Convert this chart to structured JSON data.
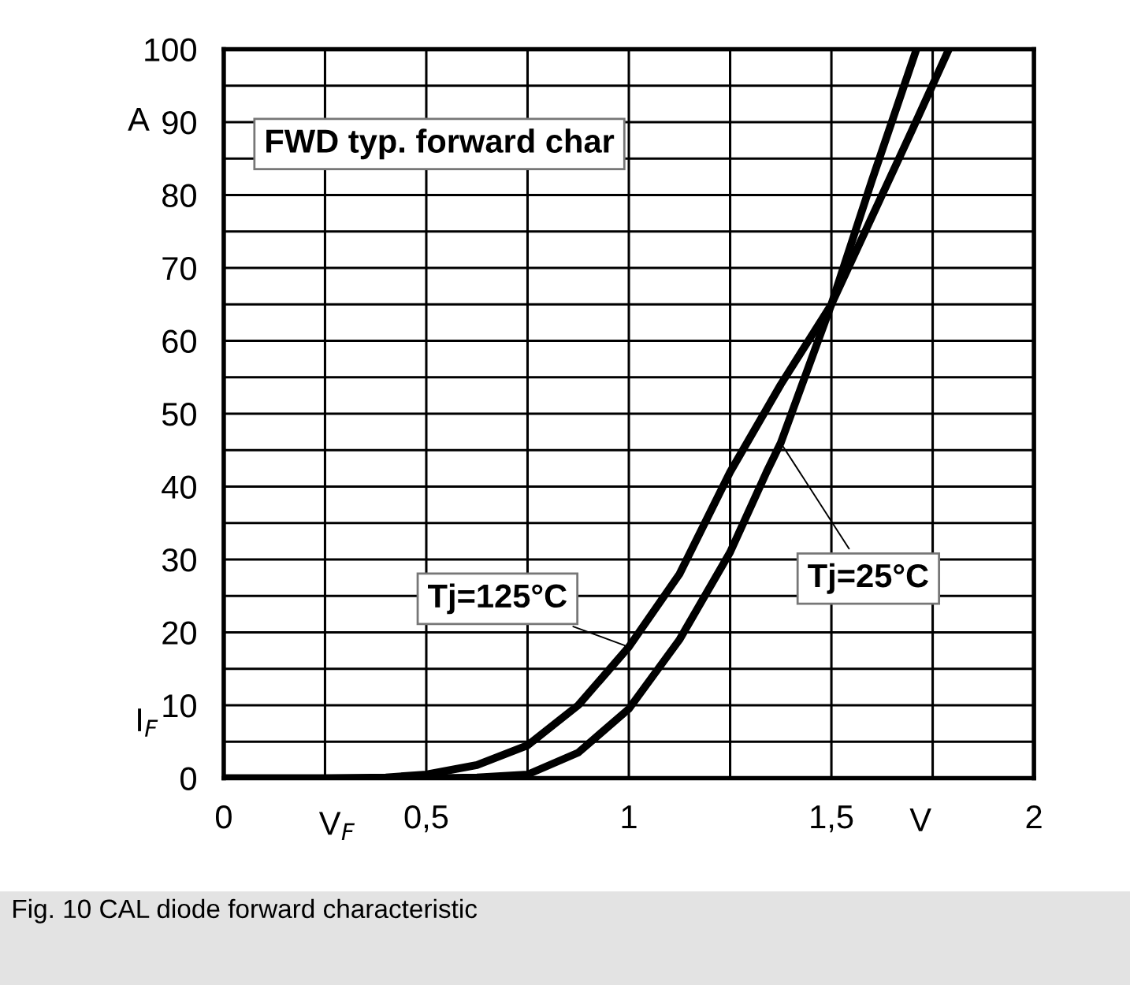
{
  "chart_data": {
    "type": "line",
    "xlabel": "V$_{F}$",
    "ylabel": "I$_{F}$",
    "annotations": [
      "FWD typ. forward char",
      "V",
      "A",
      "Fig. 10 CAL diode forward characteristic"
    ],
    "series": [
      {
        "name": "Tj=125°C",
        "color": "#000000",
        "x": [
          0,
          0.25,
          0.4,
          0.5,
          0.625,
          0.75,
          0.875,
          1.0,
          1.125,
          1.25,
          1.375,
          1.5,
          1.6,
          1.71
        ],
        "values": [
          0,
          0,
          0.1,
          0.5,
          1.8,
          4.5,
          10,
          18,
          28,
          42,
          54,
          65,
          82,
          100
        ]
      },
      {
        "name": "Tj=25°C",
        "color": "#000000",
        "x": [
          0,
          0.25,
          0.5,
          0.625,
          0.75,
          0.875,
          1.0,
          1.125,
          1.25,
          1.34,
          1.375,
          1.5,
          1.625,
          1.7,
          1.79
        ],
        "values": [
          0,
          0,
          0,
          0.1,
          0.5,
          3.5,
          9.5,
          19,
          31,
          42,
          46,
          65,
          80,
          89,
          100
        ]
      }
    ],
    "xlim": [
      0,
      2
    ],
    "ylim": [
      0,
      100
    ],
    "xticks": [
      0,
      {
        "value": 0.25,
        "label": null
      },
      {
        "value": 0.5,
        "label": "0,5"
      },
      {
        "value": 0.75,
        "label": null
      },
      1,
      {
        "value": 1.25,
        "label": null
      },
      {
        "value": 1.5,
        "label": "1,5"
      },
      {
        "value": 1.75,
        "label": null
      },
      2
    ],
    "yticks": [
      0,
      {
        "value": 5,
        "label": null
      },
      10,
      {
        "value": 15,
        "label": null
      },
      20,
      {
        "value": 25,
        "label": null
      },
      30,
      {
        "value": 35,
        "label": null
      },
      40,
      {
        "value": 45,
        "label": null
      },
      50,
      {
        "value": 55,
        "label": null
      },
      60,
      {
        "value": 65,
        "label": null
      },
      70,
      {
        "value": 75,
        "label": null
      },
      80,
      {
        "value": 85,
        "label": null
      },
      90,
      {
        "value": 95,
        "label": null
      },
      100
    ],
    "grid": true,
    "legend": false,
    "marker": "none",
    "line_style": "solid"
  }
}
